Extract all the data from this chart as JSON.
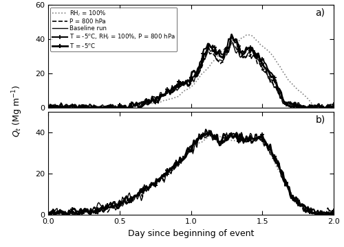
{
  "title_a": "a)",
  "title_b": "b)",
  "xlabel": "Day since beginning of event",
  "ylabel": "Q$_t$ (Mg m$^{-1}$)",
  "xlim": [
    0.0,
    2.0
  ],
  "ylim_a": [
    0,
    60
  ],
  "ylim_b": [
    0,
    50
  ],
  "yticks_a": [
    0,
    20,
    40,
    60
  ],
  "yticks_b": [
    0,
    20,
    40
  ],
  "xticks": [
    0.0,
    0.5,
    1.0,
    1.5,
    2.0
  ],
  "legend_labels": [
    "Baseline run",
    "T = -5$^o$C",
    "RH$_i$ = 100%",
    "P = 800 hPa",
    "T = -5$^o$C, RH$_i$ = 100%, P = 800 hPa"
  ],
  "figsize": [
    5.0,
    3.6
  ],
  "dpi": 100
}
